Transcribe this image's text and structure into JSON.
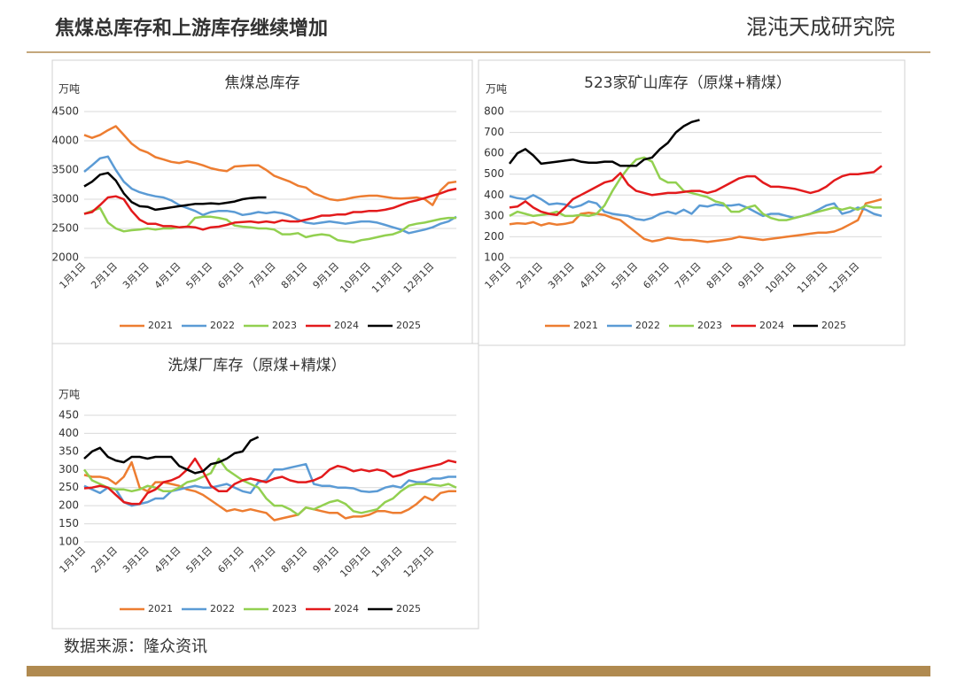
{
  "header": {
    "title": "焦煤总库存和上游库存继续增加",
    "logo": "混沌天成研究院"
  },
  "source": "数据来源：隆众资讯",
  "chart_data": [
    {
      "type": "line",
      "title": "焦煤总库存",
      "y_unit": "万吨",
      "categories": [
        "1月1日",
        null,
        null,
        null,
        "2月1日",
        null,
        null,
        null,
        "3月1日",
        null,
        null,
        null,
        "4月1日",
        null,
        null,
        null,
        "5月1日",
        null,
        null,
        null,
        "6月1日",
        null,
        null,
        null,
        "7月1日",
        null,
        null,
        null,
        "8月1日",
        null,
        null,
        null,
        "9月1日",
        null,
        null,
        null,
        "10月1日",
        null,
        null,
        null,
        "11月1日",
        null,
        null,
        null,
        "12月1日",
        null,
        null,
        null
      ],
      "ylim": [
        2000,
        4500
      ],
      "yticks": [
        2000,
        2500,
        3000,
        3500,
        4000,
        4500
      ],
      "grid": true,
      "series": [
        {
          "name": "2021",
          "color": "#ed7d31",
          "values": [
            4100,
            4050,
            4100,
            4180,
            4250,
            4100,
            3950,
            3850,
            3800,
            3720,
            3680,
            3640,
            3620,
            3650,
            3620,
            3580,
            3530,
            3500,
            3480,
            3560,
            3570,
            3580,
            3580,
            3500,
            3400,
            3350,
            3300,
            3230,
            3200,
            3100,
            3050,
            3000,
            2980,
            3000,
            3030,
            3050,
            3060,
            3060,
            3040,
            3020,
            3010,
            3020,
            3030,
            3000,
            2900,
            3150,
            3280,
            3300
          ]
        },
        {
          "name": "2022",
          "color": "#5b9bd5",
          "values": [
            3470,
            3580,
            3700,
            3730,
            3500,
            3300,
            3180,
            3120,
            3080,
            3050,
            3030,
            2980,
            2900,
            2850,
            2800,
            2730,
            2780,
            2800,
            2800,
            2780,
            2730,
            2750,
            2780,
            2760,
            2780,
            2760,
            2720,
            2650,
            2600,
            2580,
            2600,
            2620,
            2600,
            2580,
            2600,
            2620,
            2620,
            2600,
            2560,
            2520,
            2480,
            2420,
            2450,
            2480,
            2520,
            2580,
            2620,
            2700
          ]
        },
        {
          "name": "2023",
          "color": "#92d050",
          "values": [
            2750,
            2800,
            2850,
            2600,
            2500,
            2450,
            2470,
            2480,
            2500,
            2480,
            2500,
            2500,
            2520,
            2530,
            2680,
            2700,
            2700,
            2680,
            2650,
            2550,
            2530,
            2520,
            2500,
            2500,
            2480,
            2400,
            2400,
            2420,
            2350,
            2380,
            2400,
            2380,
            2300,
            2280,
            2260,
            2300,
            2320,
            2350,
            2380,
            2400,
            2450,
            2550,
            2580,
            2600,
            2630,
            2660,
            2680,
            2680
          ]
        },
        {
          "name": "2024",
          "color": "#e31a1c",
          "values": [
            2750,
            2780,
            2900,
            3030,
            3050,
            3000,
            2800,
            2650,
            2580,
            2580,
            2540,
            2540,
            2520,
            2530,
            2520,
            2480,
            2520,
            2530,
            2560,
            2600,
            2610,
            2620,
            2600,
            2620,
            2600,
            2640,
            2620,
            2620,
            2650,
            2680,
            2720,
            2720,
            2740,
            2740,
            2780,
            2780,
            2800,
            2800,
            2820,
            2850,
            2900,
            2950,
            2980,
            3020,
            3060,
            3100,
            3150,
            3180
          ]
        },
        {
          "name": "2025",
          "color": "#000000",
          "values": [
            3220,
            3300,
            3420,
            3450,
            3320,
            3100,
            2950,
            2880,
            2870,
            2820,
            2840,
            2860,
            2880,
            2900,
            2920,
            2920,
            2930,
            2920,
            2940,
            2960,
            3000,
            3020,
            3030,
            3030,
            null,
            null,
            null,
            null,
            null,
            null,
            null,
            null,
            null,
            null,
            null,
            null,
            null,
            null,
            null,
            null,
            null,
            null,
            null,
            null,
            null,
            null,
            null,
            null
          ]
        }
      ]
    },
    {
      "type": "line",
      "title": "523家矿山库存（原煤+精煤）",
      "y_unit": "万吨",
      "categories": [
        "1月1日",
        null,
        null,
        null,
        "2月1日",
        null,
        null,
        null,
        "3月1日",
        null,
        null,
        null,
        "4月1日",
        null,
        null,
        null,
        "5月1日",
        null,
        null,
        null,
        "6月1日",
        null,
        null,
        null,
        "7月1日",
        null,
        null,
        null,
        "8月1日",
        null,
        null,
        null,
        "9月1日",
        null,
        null,
        null,
        "10月1日",
        null,
        null,
        null,
        "11月1日",
        null,
        null,
        null,
        "12月1日",
        null,
        null,
        null
      ],
      "ylim": [
        100,
        800
      ],
      "yticks": [
        100,
        200,
        300,
        400,
        500,
        600,
        700,
        800
      ],
      "grid": true,
      "series": [
        {
          "name": "2021",
          "color": "#ed7d31",
          "values": [
            260,
            265,
            262,
            270,
            255,
            265,
            258,
            262,
            270,
            310,
            315,
            310,
            305,
            290,
            280,
            250,
            220,
            190,
            178,
            185,
            195,
            190,
            185,
            185,
            180,
            175,
            180,
            185,
            190,
            200,
            195,
            190,
            185,
            190,
            195,
            200,
            205,
            210,
            215,
            220,
            220,
            225,
            240,
            260,
            280,
            360,
            370,
            380
          ]
        },
        {
          "name": "2022",
          "color": "#5b9bd5",
          "values": [
            395,
            385,
            380,
            400,
            380,
            355,
            360,
            355,
            340,
            350,
            370,
            360,
            320,
            310,
            305,
            300,
            285,
            280,
            290,
            310,
            320,
            310,
            330,
            310,
            350,
            345,
            355,
            350,
            350,
            355,
            340,
            320,
            300,
            310,
            310,
            300,
            290,
            300,
            310,
            330,
            350,
            360,
            310,
            320,
            340,
            330,
            310,
            300
          ]
        },
        {
          "name": "2023",
          "color": "#92d050",
          "values": [
            300,
            320,
            310,
            300,
            305,
            310,
            320,
            300,
            300,
            305,
            300,
            310,
            350,
            420,
            480,
            530,
            570,
            580,
            560,
            480,
            460,
            460,
            420,
            410,
            400,
            390,
            370,
            360,
            320,
            320,
            340,
            350,
            310,
            290,
            280,
            280,
            290,
            300,
            310,
            320,
            330,
            340,
            330,
            340,
            330,
            350,
            340,
            340
          ]
        },
        {
          "name": "2024",
          "color": "#e31a1c",
          "values": [
            340,
            345,
            370,
            340,
            320,
            310,
            305,
            340,
            380,
            400,
            420,
            440,
            460,
            470,
            505,
            450,
            420,
            410,
            400,
            405,
            410,
            410,
            415,
            420,
            420,
            410,
            420,
            440,
            460,
            480,
            490,
            490,
            460,
            440,
            440,
            435,
            430,
            420,
            410,
            420,
            440,
            470,
            490,
            500,
            500,
            505,
            510,
            540
          ]
        },
        {
          "name": "2025",
          "color": "#000000",
          "values": [
            550,
            600,
            620,
            590,
            550,
            555,
            560,
            565,
            570,
            560,
            555,
            555,
            560,
            560,
            540,
            540,
            540,
            570,
            580,
            620,
            650,
            700,
            730,
            750,
            760,
            null,
            null,
            null,
            null,
            null,
            null,
            null,
            null,
            null,
            null,
            null,
            null,
            null,
            null,
            null,
            null,
            null,
            null,
            null,
            null,
            null,
            null,
            null
          ]
        }
      ]
    },
    {
      "type": "line",
      "title": "洗煤厂库存（原煤+精煤）",
      "y_unit": "万吨",
      "categories": [
        "1月1日",
        null,
        null,
        null,
        "2月1日",
        null,
        null,
        null,
        "3月1日",
        null,
        null,
        null,
        "4月1日",
        null,
        null,
        null,
        "5月1日",
        null,
        null,
        null,
        "6月1日",
        null,
        null,
        null,
        "7月1日",
        null,
        null,
        null,
        "8月1日",
        null,
        null,
        null,
        "9月1日",
        null,
        null,
        null,
        "10月1日",
        null,
        null,
        null,
        "11月1日",
        null,
        null,
        null,
        "12月1日",
        null,
        null,
        null
      ],
      "ylim": [
        100,
        450
      ],
      "yticks": [
        100,
        150,
        200,
        250,
        300,
        350,
        400,
        450
      ],
      "grid": true,
      "series": [
        {
          "name": "2021",
          "color": "#ed7d31",
          "values": [
            285,
            280,
            280,
            275,
            260,
            280,
            320,
            250,
            240,
            265,
            265,
            260,
            255,
            245,
            240,
            230,
            215,
            200,
            185,
            190,
            185,
            190,
            185,
            180,
            160,
            165,
            170,
            175,
            195,
            190,
            185,
            180,
            180,
            165,
            170,
            170,
            175,
            185,
            185,
            180,
            180,
            190,
            205,
            225,
            215,
            235,
            240,
            240
          ]
        },
        {
          "name": "2022",
          "color": "#5b9bd5",
          "values": [
            255,
            245,
            235,
            250,
            245,
            210,
            200,
            205,
            210,
            220,
            220,
            240,
            245,
            250,
            255,
            250,
            250,
            255,
            260,
            250,
            240,
            235,
            265,
            270,
            300,
            300,
            305,
            310,
            315,
            260,
            255,
            255,
            250,
            250,
            248,
            240,
            238,
            240,
            250,
            255,
            250,
            270,
            265,
            265,
            275,
            275,
            280,
            280
          ]
        },
        {
          "name": "2023",
          "color": "#92d050",
          "values": [
            300,
            270,
            260,
            250,
            245,
            245,
            240,
            245,
            255,
            250,
            240,
            240,
            250,
            265,
            270,
            280,
            290,
            330,
            300,
            285,
            270,
            260,
            250,
            220,
            200,
            200,
            190,
            175,
            195,
            190,
            200,
            210,
            215,
            205,
            185,
            180,
            185,
            190,
            210,
            220,
            240,
            255,
            260,
            260,
            258,
            255,
            260,
            250
          ]
        },
        {
          "name": "2024",
          "color": "#e31a1c",
          "values": [
            248,
            250,
            255,
            250,
            230,
            210,
            205,
            205,
            235,
            245,
            265,
            270,
            280,
            300,
            330,
            295,
            255,
            240,
            240,
            260,
            270,
            275,
            270,
            265,
            275,
            280,
            270,
            265,
            265,
            270,
            280,
            300,
            310,
            305,
            295,
            300,
            295,
            300,
            295,
            280,
            285,
            295,
            300,
            305,
            310,
            315,
            325,
            320
          ]
        },
        {
          "name": "2025",
          "color": "#000000",
          "values": [
            330,
            350,
            360,
            335,
            325,
            320,
            335,
            335,
            330,
            335,
            335,
            335,
            310,
            300,
            290,
            295,
            315,
            320,
            330,
            345,
            350,
            380,
            390,
            null,
            null,
            null,
            null,
            null,
            null,
            null,
            null,
            null,
            null,
            null,
            null,
            null,
            null,
            null,
            null,
            null,
            null,
            null,
            null,
            null,
            null,
            null,
            null,
            null
          ]
        }
      ]
    }
  ]
}
